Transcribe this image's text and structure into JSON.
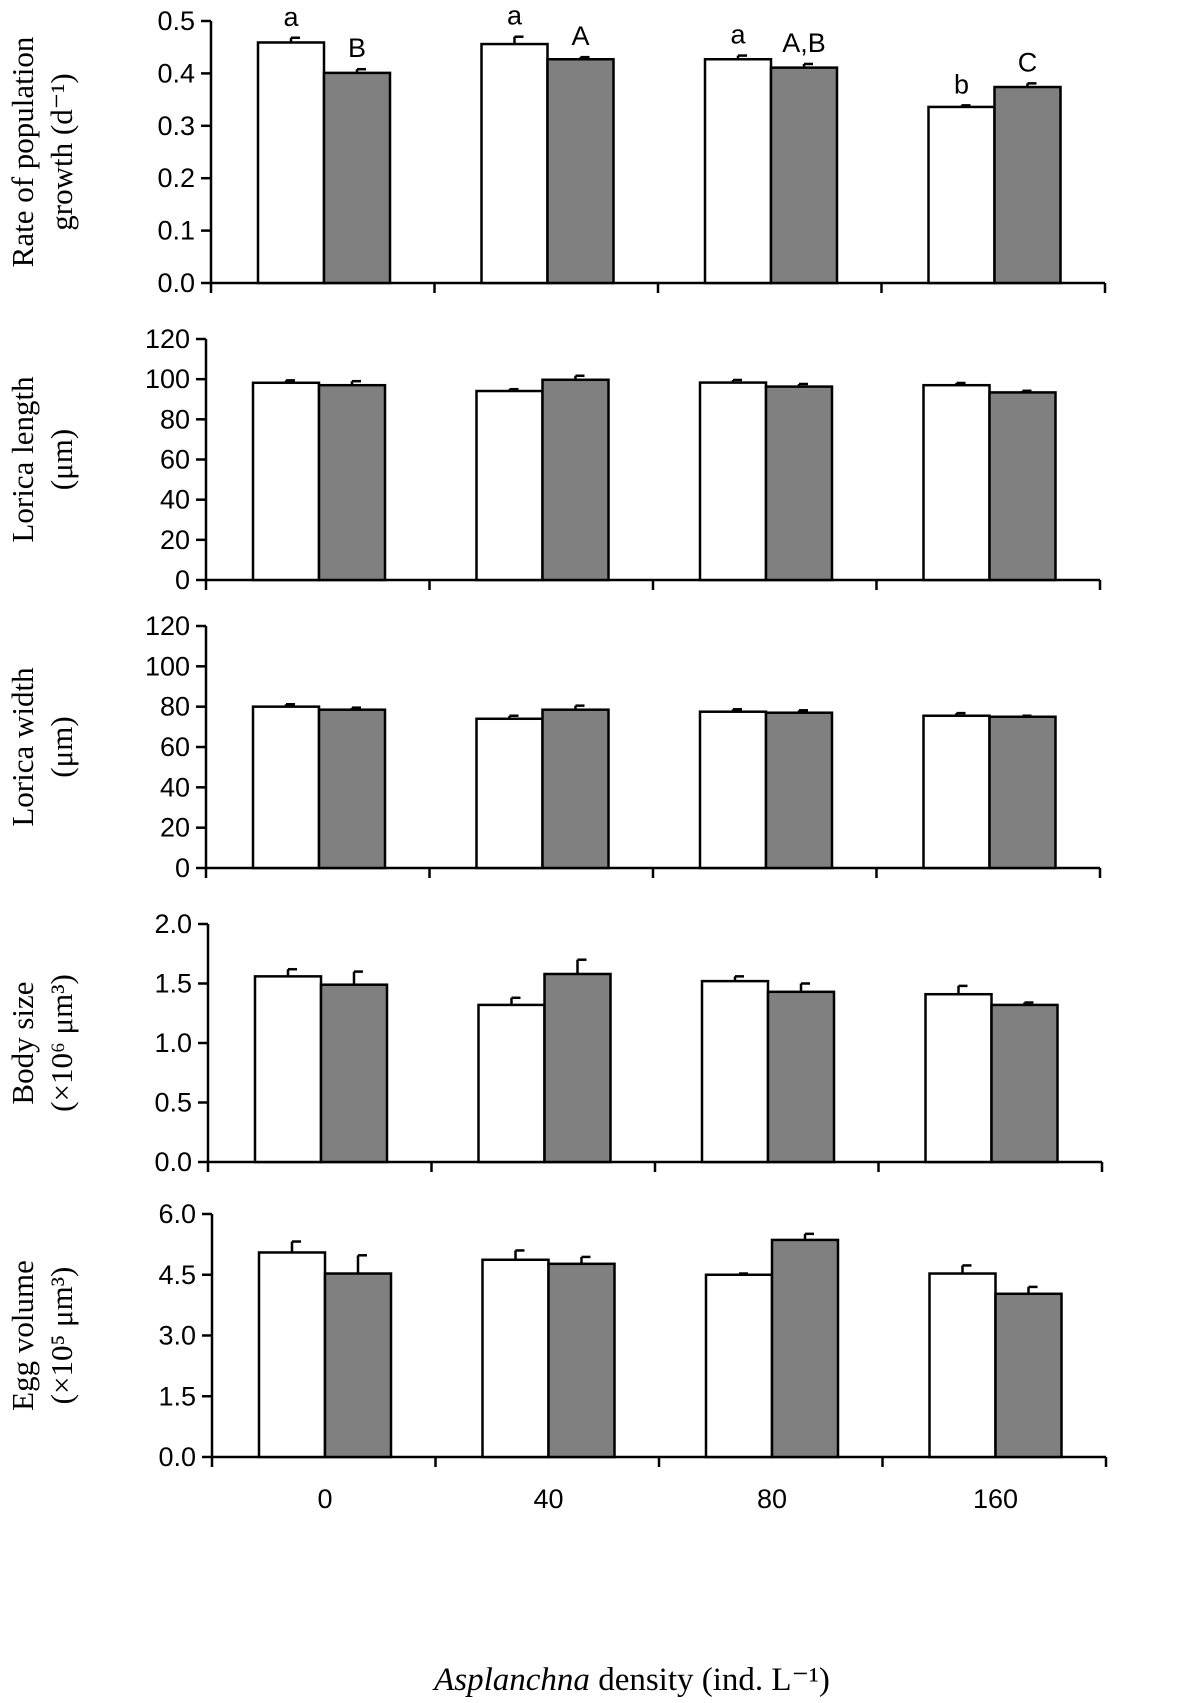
{
  "chart_data": [
    {
      "type": "bar",
      "ylabel_lines": [
        "Rate of population",
        "growth (d⁻¹)"
      ],
      "ylim": [
        0,
        0.5
      ],
      "yticks": [
        0,
        0.1,
        0.2,
        0.3,
        0.4,
        0.5
      ],
      "ytick_labels": [
        "0.0",
        "0.1",
        "0.2",
        "0.3",
        "0.4",
        "0.5"
      ],
      "categories": [
        "0",
        "40",
        "80",
        "160"
      ],
      "series": [
        {
          "color": "#ffffff",
          "values": [
            0.459,
            0.456,
            0.427,
            0.336
          ],
          "errors": [
            0.009,
            0.014,
            0.007,
            0.003
          ],
          "significance": [
            "a",
            "a",
            "a",
            "b"
          ]
        },
        {
          "color": "#808080",
          "values": [
            0.401,
            0.427,
            0.411,
            0.374
          ],
          "errors": [
            0.007,
            0.004,
            0.007,
            0.007
          ],
          "significance": [
            "B",
            "A",
            "A,B",
            "C"
          ]
        }
      ]
    },
    {
      "type": "bar",
      "ylabel_lines": [
        "Lorica length",
        "(μm)"
      ],
      "ylim": [
        0,
        120
      ],
      "yticks": [
        0,
        20,
        40,
        60,
        80,
        100,
        120
      ],
      "ytick_labels": [
        "0",
        "20",
        "40",
        "60",
        "80",
        "100",
        "120"
      ],
      "categories": [
        "0",
        "40",
        "80",
        "160"
      ],
      "series": [
        {
          "color": "#ffffff",
          "values": [
            98.2,
            94.1,
            98.3,
            97.0
          ],
          "errors": [
            1.2,
            0.9,
            1.3,
            1.1
          ]
        },
        {
          "color": "#808080",
          "values": [
            97.0,
            99.7,
            96.3,
            93.4
          ],
          "errors": [
            2.0,
            2.0,
            1.3,
            0.8
          ]
        }
      ]
    },
    {
      "type": "bar",
      "ylabel_lines": [
        "Lorica width",
        "(μm)"
      ],
      "ylim": [
        0,
        120
      ],
      "yticks": [
        0,
        20,
        40,
        60,
        80,
        100,
        120
      ],
      "ytick_labels": [
        "0",
        "20",
        "40",
        "60",
        "80",
        "100",
        "120"
      ],
      "categories": [
        "0",
        "40",
        "80",
        "160"
      ],
      "series": [
        {
          "color": "#ffffff",
          "values": [
            80.0,
            74.0,
            77.5,
            75.5
          ],
          "errors": [
            1.2,
            1.5,
            1.2,
            1.3
          ]
        },
        {
          "color": "#808080",
          "values": [
            78.5,
            78.5,
            77.0,
            75.0
          ],
          "errors": [
            1.0,
            2.0,
            1.2,
            0.5
          ]
        }
      ]
    },
    {
      "type": "bar",
      "ylabel_lines": [
        "Body size",
        "(×10⁶ μm³)"
      ],
      "ylim": [
        0,
        2.0
      ],
      "yticks": [
        0,
        0.5,
        1.0,
        1.5,
        2.0
      ],
      "ytick_labels": [
        "0.0",
        "0.5",
        "1.0",
        "1.5",
        "2.0"
      ],
      "categories": [
        "0",
        "40",
        "80",
        "160"
      ],
      "series": [
        {
          "color": "#ffffff",
          "values": [
            1.56,
            1.32,
            1.52,
            1.41
          ],
          "errors": [
            0.06,
            0.06,
            0.04,
            0.07
          ]
        },
        {
          "color": "#808080",
          "values": [
            1.49,
            1.58,
            1.43,
            1.32
          ],
          "errors": [
            0.11,
            0.12,
            0.07,
            0.02
          ]
        }
      ]
    },
    {
      "type": "bar",
      "ylabel_lines": [
        "Egg volume",
        "(×10⁵ μm³)"
      ],
      "ylim": [
        0,
        6.0
      ],
      "yticks": [
        0,
        1.5,
        3.0,
        4.5,
        6.0
      ],
      "ytick_labels": [
        "0.0",
        "1.5",
        "3.0",
        "4.5",
        "6.0"
      ],
      "categories": [
        "0",
        "40",
        "80",
        "160"
      ],
      "series": [
        {
          "color": "#ffffff",
          "values": [
            5.05,
            4.87,
            4.5,
            4.53
          ],
          "errors": [
            0.27,
            0.23,
            0.03,
            0.2
          ]
        },
        {
          "color": "#808080",
          "values": [
            4.53,
            4.77,
            5.36,
            4.03
          ],
          "errors": [
            0.45,
            0.17,
            0.15,
            0.17
          ]
        }
      ]
    }
  ],
  "x_axis": {
    "label_italic": "Asplanchna",
    "label_rest": " density (ind. L⁻¹)"
  }
}
